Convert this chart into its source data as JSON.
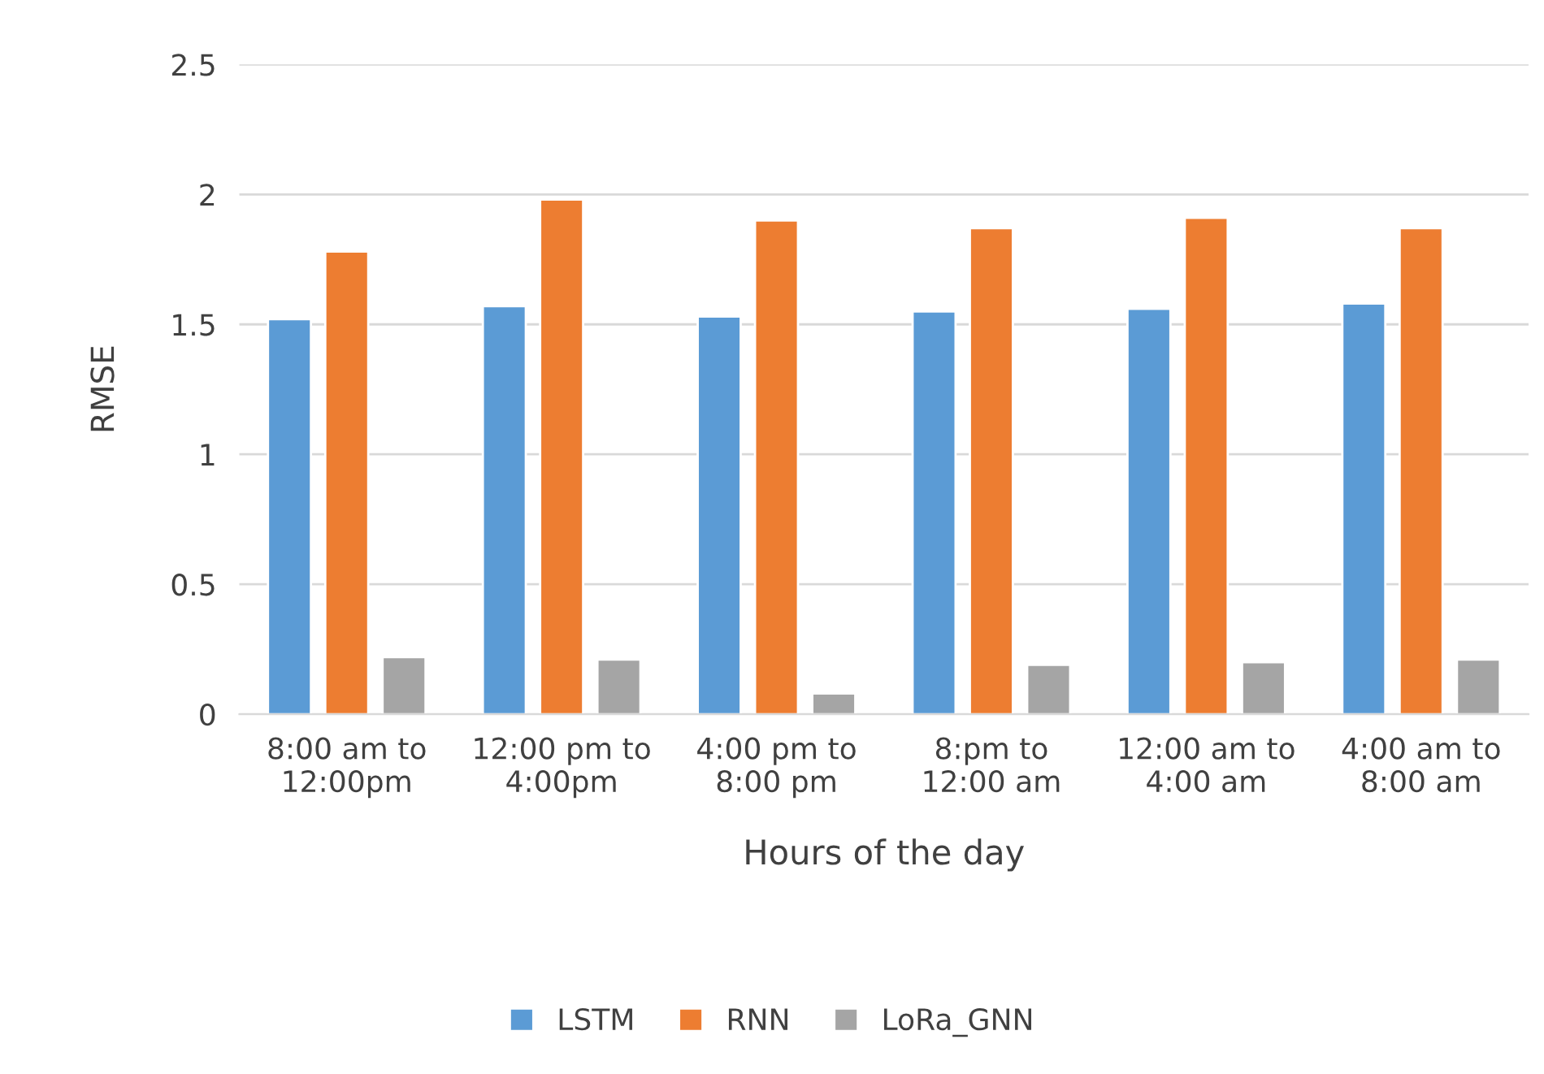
{
  "chart_data": {
    "type": "bar",
    "xlabel": "Hours of the day",
    "ylabel": "RMSE",
    "categories": [
      "8:00 am to\n12:00pm",
      "12:00 pm to\n4:00pm",
      "4:00 pm to\n8:00 pm",
      "8:pm to\n12:00 am",
      "12:00 am to\n4:00 am",
      "4:00 am to\n8:00 am"
    ],
    "series": [
      {
        "name": "LSTM",
        "color": "#5b9bd5",
        "values": [
          1.52,
          1.57,
          1.53,
          1.55,
          1.56,
          1.58
        ]
      },
      {
        "name": "RNN",
        "color": "#ed7d31",
        "values": [
          1.78,
          1.98,
          1.9,
          1.87,
          1.91,
          1.87
        ]
      },
      {
        "name": "LoRa_GNN",
        "color": "#a5a5a5",
        "values": [
          0.22,
          0.21,
          0.08,
          0.19,
          0.2,
          0.21
        ]
      }
    ],
    "ylim": [
      0,
      2.5
    ],
    "yticks": [
      0,
      0.5,
      1,
      1.5,
      2,
      2.5
    ],
    "grid": "y",
    "legend": "bottom"
  }
}
